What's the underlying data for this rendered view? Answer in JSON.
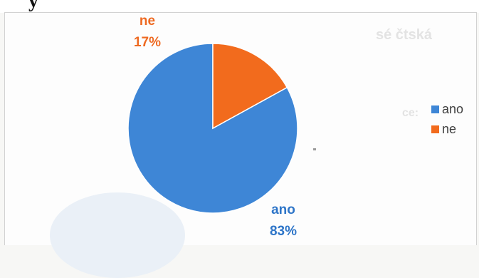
{
  "page_header": {
    "fragment": "y"
  },
  "chart_data": {
    "type": "pie",
    "title": "",
    "slices": [
      {
        "label": "ano",
        "value": 83,
        "percent_label": "83%",
        "color": "#3e86d6",
        "label_color": "#2e75c8"
      },
      {
        "label": "ne",
        "value": 17,
        "percent_label": "17%",
        "color": "#f26b1d",
        "label_color": "#ee6a22"
      }
    ],
    "legend": {
      "position": "right",
      "entries": [
        {
          "label": "ano",
          "color": "#3e86d6"
        },
        {
          "label": "ne",
          "color": "#f26b1d"
        }
      ]
    }
  }
}
